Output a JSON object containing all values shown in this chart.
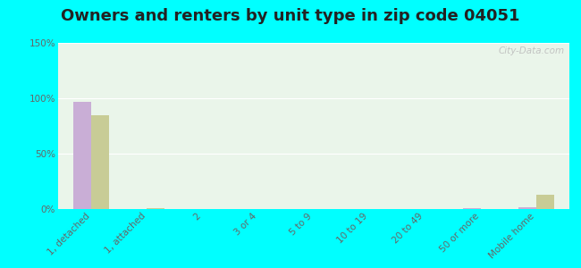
{
  "title": "Owners and renters by unit type in zip code 04051",
  "categories": [
    "1, detached",
    "1, attached",
    "2",
    "3 or 4",
    "5 to 9",
    "10 to 19",
    "20 to 49",
    "50 or more",
    "Mobile home"
  ],
  "owner_values": [
    97,
    0,
    0,
    0,
    0,
    0,
    0,
    1,
    2
  ],
  "renter_values": [
    85,
    1,
    0,
    0,
    0,
    0,
    0,
    0,
    13
  ],
  "owner_color": "#c9aed6",
  "renter_color": "#c8cc96",
  "bg_top": "#eaf5ea",
  "bg_bottom": "#d8edcc",
  "outer_bg": "#00ffff",
  "ylim": [
    0,
    150
  ],
  "yticks": [
    0,
    50,
    100,
    150
  ],
  "ytick_labels": [
    "0%",
    "50%",
    "100%",
    "150%"
  ],
  "watermark": "City-Data.com",
  "title_fontsize": 13,
  "tick_fontsize": 7.5,
  "legend_fontsize": 9
}
